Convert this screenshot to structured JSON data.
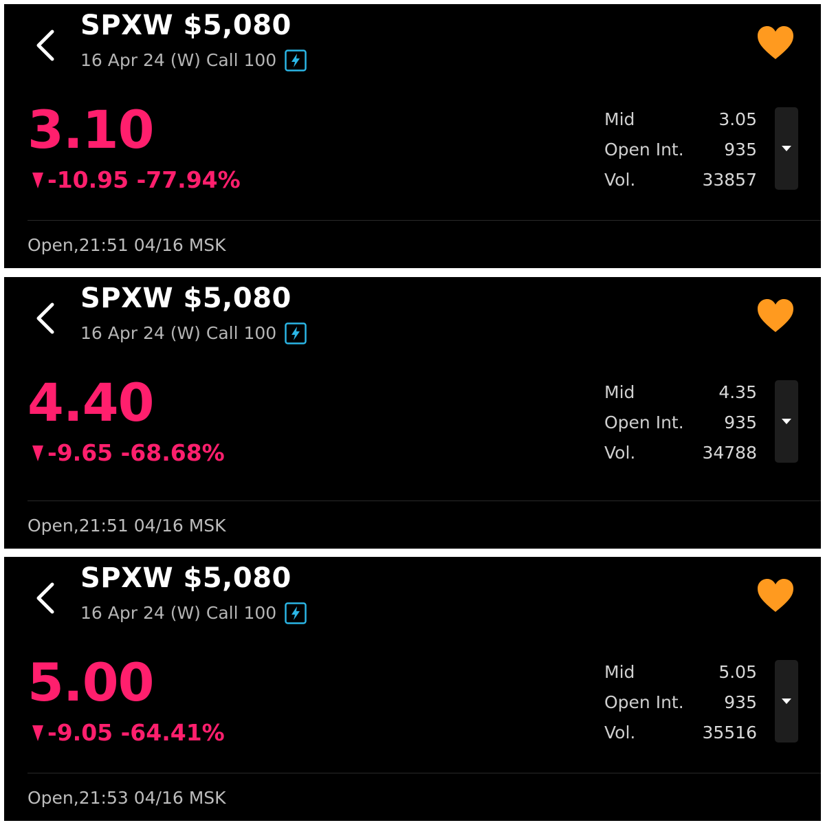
{
  "panels": [
    {
      "title": "SPXW $5,080",
      "subtitle": "16 Apr 24 (W) Call 100",
      "price": "3.10",
      "change": "-10.95 -77.94%",
      "stats": [
        {
          "label": "Mid",
          "value": "3.05"
        },
        {
          "label": "Open Int.",
          "value": "935"
        },
        {
          "label": "Vol.",
          "value": "33857"
        }
      ],
      "status": "Open,21:51 04/16 MSK"
    },
    {
      "title": "SPXW $5,080",
      "subtitle": "16 Apr 24 (W) Call 100",
      "price": "4.40",
      "change": "-9.65 -68.68%",
      "stats": [
        {
          "label": "Mid",
          "value": "4.35"
        },
        {
          "label": "Open Int.",
          "value": "935"
        },
        {
          "label": "Vol.",
          "value": "34788"
        }
      ],
      "status": "Open,21:51 04/16 MSK"
    },
    {
      "title": "SPXW $5,080",
      "subtitle": "16 Apr 24 (W) Call 100",
      "price": "5.00",
      "change": "-9.05 -64.41%",
      "stats": [
        {
          "label": "Mid",
          "value": "5.05"
        },
        {
          "label": "Open Int.",
          "value": "935"
        },
        {
          "label": "Vol.",
          "value": "35516"
        }
      ],
      "status": "Open,21:53 04/16 MSK"
    }
  ],
  "icons": {
    "back": "back-icon",
    "flash": "flash-icon",
    "favorite": "heart-icon",
    "change_direction": "down-arrow-icon",
    "expand": "chevron-down-icon"
  },
  "colors": {
    "background": "#000000",
    "negative": "#ff1f6d",
    "favorite": "#ff9a1f",
    "flash": "#2bb6e6"
  }
}
